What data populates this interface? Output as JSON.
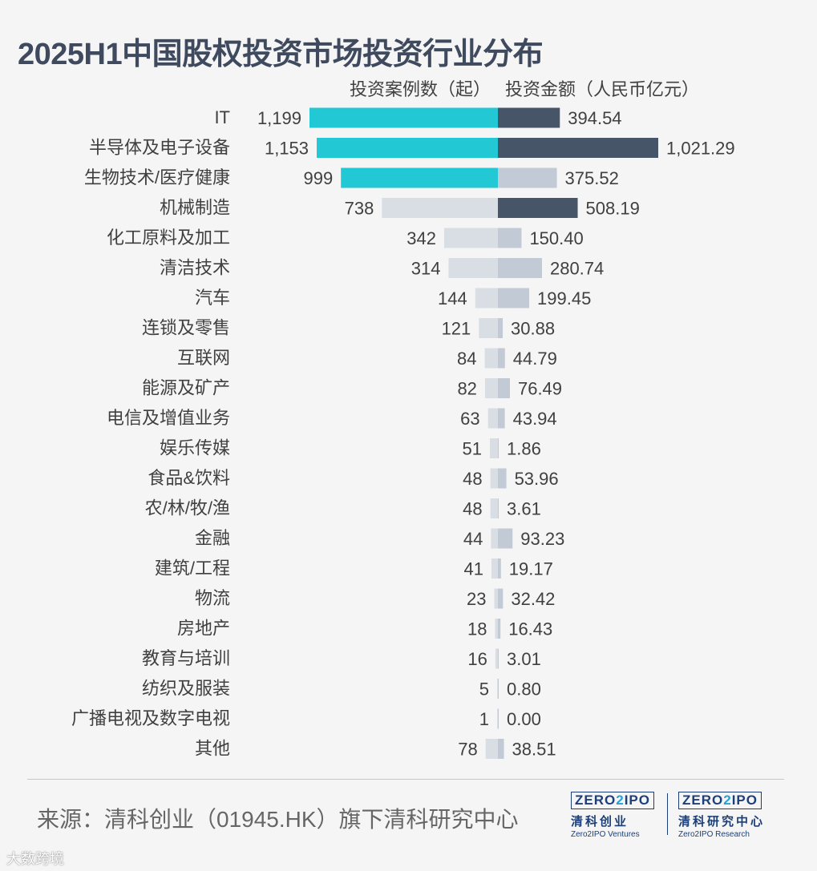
{
  "title": "2025H1中国股权投资市场投资行业分布",
  "left_header": "投资案例数（起）",
  "right_header": "投资金额（人民币亿元）",
  "source": "来源：清科创业（01945.HK）旗下清科研究中心",
  "logos": [
    {
      "mark_a": "ZERO",
      "mark_b": "2",
      "mark_c": "IPO",
      "cn": "清科创业",
      "en": "Zero2IPO Ventures"
    },
    {
      "mark_a": "ZERO",
      "mark_b": "2",
      "mark_c": "IPO",
      "cn": "清科研究中心",
      "en": "Zero2IPO Research"
    }
  ],
  "watermark": "大数跨境",
  "colors": {
    "left_highlight": "#22c8d4",
    "left_muted": "#d9dee4",
    "right_highlight": "#475569",
    "right_muted": "#c2cad5"
  },
  "chart_data": {
    "type": "bar",
    "orientation": "horizontal-diverging",
    "categories": [
      "IT",
      "半导体及电子设备",
      "生物技术/医疗健康",
      "机械制造",
      "化工原料及加工",
      "清洁技术",
      "汽车",
      "连锁及零售",
      "互联网",
      "能源及矿产",
      "电信及增值业务",
      "娱乐传媒",
      "食品&饮料",
      "农/林/牧/渔",
      "金融",
      "建筑/工程",
      "物流",
      "房地产",
      "教育与培训",
      "纺织及服装",
      "广播电视及数字电视",
      "其他"
    ],
    "series": [
      {
        "name": "投资案例数（起）",
        "values": [
          1199,
          1153,
          999,
          738,
          342,
          314,
          144,
          121,
          84,
          82,
          63,
          51,
          48,
          48,
          44,
          41,
          23,
          18,
          16,
          5,
          1,
          78
        ],
        "labels": [
          "1,199",
          "1,153",
          "999",
          "738",
          "342",
          "314",
          "144",
          "121",
          "84",
          "82",
          "63",
          "51",
          "48",
          "48",
          "44",
          "41",
          "23",
          "18",
          "16",
          "5",
          "1",
          "78"
        ],
        "highlighted": [
          true,
          true,
          true,
          false,
          false,
          false,
          false,
          false,
          false,
          false,
          false,
          false,
          false,
          false,
          false,
          false,
          false,
          false,
          false,
          false,
          false,
          false
        ]
      },
      {
        "name": "投资金额（人民币亿元）",
        "values": [
          394.54,
          1021.29,
          375.52,
          508.19,
          150.4,
          280.74,
          199.45,
          30.88,
          44.79,
          76.49,
          43.94,
          1.86,
          53.96,
          3.61,
          93.23,
          19.17,
          32.42,
          16.43,
          3.01,
          0.8,
          0.0,
          38.51
        ],
        "labels": [
          "394.54",
          "1,021.29",
          "375.52",
          "508.19",
          "150.40",
          "280.74",
          "199.45",
          "30.88",
          "44.79",
          "76.49",
          "43.94",
          "1.86",
          "53.96",
          "3.61",
          "93.23",
          "19.17",
          "32.42",
          "16.43",
          "3.01",
          "0.80",
          "0.00",
          "38.51"
        ],
        "highlighted": [
          true,
          true,
          false,
          true,
          false,
          false,
          false,
          false,
          false,
          false,
          false,
          false,
          false,
          false,
          false,
          false,
          false,
          false,
          false,
          false,
          false,
          false
        ]
      }
    ],
    "xlim_left": [
      0,
      1199
    ],
    "xlim_right": [
      0,
      1021.29
    ],
    "grid": false,
    "legend": "none"
  }
}
